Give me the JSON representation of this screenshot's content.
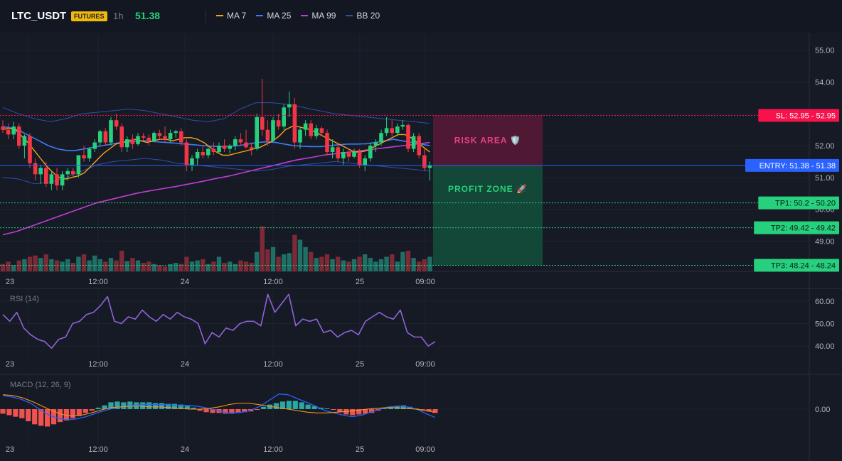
{
  "header": {
    "symbol": "LTC_USDT",
    "badge": "FUTURES",
    "timeframe": "1h",
    "price": "51.38",
    "legend": [
      {
        "label": "MA 7",
        "color": "#f7a21b"
      },
      {
        "label": "MA 25",
        "color": "#3d7bf7"
      },
      {
        "label": "MA 99",
        "color": "#c23cd6"
      },
      {
        "label": "BB 20",
        "color": "#2f4fa8"
      }
    ]
  },
  "colors": {
    "up": "#26d07c",
    "down": "#f23645",
    "vol_up": "#1f6f67",
    "vol_down": "#7d2a36",
    "entry": "#2962ff",
    "sl": "#f7124b",
    "tp": "#26d07c",
    "rsi": "#8e63d6",
    "macd": "#2962ff",
    "signal": "#f7931a",
    "hist_pos": "#2aa8a4",
    "hist_neg": "#ef5350"
  },
  "chart_data": [
    {
      "type": "candlestick",
      "panel": "price",
      "yticks": [
        49.0,
        50.0,
        51.0,
        52.0,
        53.0,
        54.0,
        55.0
      ],
      "ylim": [
        48.05,
        55.55
      ],
      "xticks": [
        "23",
        "12:00",
        "24",
        "12:00",
        "25",
        "09:00"
      ],
      "levels": [
        {
          "name": "SL",
          "value": 52.95,
          "label": "SL: 52.95",
          "price": "52.95"
        },
        {
          "name": "ENTRY",
          "value": 51.38,
          "label": "ENTRY: 51.38",
          "price": "51.38"
        },
        {
          "name": "TP1",
          "value": 50.2,
          "label": "TP1: 50.2",
          "price": "50.20"
        },
        {
          "name": "TP2",
          "value": 49.42,
          "label": "TP2: 49.42",
          "price": "49.42"
        },
        {
          "name": "TP3",
          "value": 48.24,
          "label": "TP3: 48.24",
          "price": "48.24"
        }
      ],
      "zones": {
        "risk_label": "RISK AREA 🛡️",
        "profit_label": "PROFIT ZONE 🚀"
      },
      "candles": [
        [
          52.6,
          52.8,
          52.4,
          52.5
        ],
        [
          52.5,
          52.7,
          52.2,
          52.35
        ],
        [
          52.35,
          52.75,
          52.2,
          52.6
        ],
        [
          52.6,
          52.7,
          51.9,
          52.0
        ],
        [
          52.0,
          52.35,
          51.6,
          52.3
        ],
        [
          52.3,
          52.4,
          51.3,
          51.45
        ],
        [
          51.45,
          51.6,
          50.9,
          51.1
        ],
        [
          51.1,
          51.4,
          50.8,
          51.3
        ],
        [
          51.3,
          51.5,
          50.7,
          50.8
        ],
        [
          50.8,
          51.2,
          50.6,
          51.1
        ],
        [
          51.1,
          51.3,
          50.6,
          50.75
        ],
        [
          50.75,
          51.2,
          50.6,
          51.1
        ],
        [
          51.1,
          51.3,
          50.9,
          51.2
        ],
        [
          51.2,
          51.3,
          51.0,
          51.1
        ],
        [
          51.1,
          51.7,
          51.0,
          51.7
        ],
        [
          51.7,
          52.0,
          51.5,
          51.6
        ],
        [
          51.6,
          51.95,
          51.5,
          51.9
        ],
        [
          51.9,
          52.2,
          51.8,
          52.1
        ],
        [
          52.1,
          52.5,
          52.0,
          52.45
        ],
        [
          52.45,
          52.55,
          52.0,
          52.1
        ],
        [
          52.1,
          52.9,
          52.0,
          52.8
        ],
        [
          52.8,
          53.0,
          52.5,
          52.6
        ],
        [
          52.6,
          52.7,
          51.8,
          51.95
        ],
        [
          51.95,
          52.3,
          51.8,
          52.2
        ],
        [
          52.2,
          52.35,
          51.9,
          52.05
        ],
        [
          52.05,
          52.4,
          52.0,
          52.3
        ],
        [
          52.3,
          52.4,
          52.15,
          52.25
        ],
        [
          52.25,
          52.35,
          52.0,
          52.15
        ],
        [
          52.15,
          52.45,
          52.1,
          52.4
        ],
        [
          52.4,
          52.5,
          52.2,
          52.3
        ],
        [
          52.3,
          52.6,
          52.1,
          52.2
        ],
        [
          52.2,
          52.5,
          52.1,
          52.4
        ],
        [
          52.4,
          52.5,
          52.25,
          52.45
        ],
        [
          52.45,
          52.55,
          52.0,
          52.1
        ],
        [
          52.1,
          52.2,
          51.2,
          51.4
        ],
        [
          51.4,
          51.7,
          51.2,
          51.6
        ],
        [
          51.6,
          51.9,
          51.4,
          51.8
        ],
        [
          51.8,
          52.0,
          51.6,
          51.7
        ],
        [
          51.7,
          51.95,
          51.6,
          51.9
        ],
        [
          51.9,
          52.1,
          51.7,
          51.8
        ],
        [
          51.8,
          52.1,
          51.75,
          52.0
        ],
        [
          52.0,
          52.2,
          51.8,
          51.9
        ],
        [
          51.9,
          52.05,
          51.75,
          52.0
        ],
        [
          52.0,
          52.3,
          51.85,
          52.2
        ],
        [
          52.2,
          52.4,
          52.0,
          52.1
        ],
        [
          52.1,
          52.5,
          51.9,
          51.95
        ],
        [
          51.95,
          52.1,
          51.7,
          51.9
        ],
        [
          51.9,
          53.0,
          51.85,
          52.9
        ],
        [
          52.9,
          54.1,
          52.3,
          52.5
        ],
        [
          52.5,
          52.8,
          52.0,
          52.15
        ],
        [
          52.15,
          52.9,
          52.1,
          52.8
        ],
        [
          52.8,
          53.0,
          52.5,
          52.6
        ],
        [
          52.6,
          53.3,
          52.5,
          53.2
        ],
        [
          53.2,
          53.7,
          52.9,
          53.3
        ],
        [
          53.3,
          53.5,
          51.9,
          52.1
        ],
        [
          52.1,
          52.6,
          51.9,
          52.5
        ],
        [
          52.5,
          52.8,
          52.3,
          52.7
        ],
        [
          52.7,
          52.8,
          52.2,
          52.3
        ],
        [
          52.3,
          52.65,
          52.2,
          52.55
        ],
        [
          52.55,
          52.6,
          52.3,
          52.4
        ],
        [
          52.4,
          52.5,
          51.7,
          51.8
        ],
        [
          51.8,
          52.2,
          51.6,
          51.95
        ],
        [
          51.95,
          52.1,
          51.5,
          51.6
        ],
        [
          51.6,
          51.9,
          51.4,
          51.8
        ],
        [
          51.8,
          51.9,
          51.5,
          51.65
        ],
        [
          51.65,
          51.9,
          51.6,
          51.8
        ],
        [
          51.8,
          51.9,
          51.3,
          51.4
        ],
        [
          51.4,
          51.7,
          51.2,
          51.6
        ],
        [
          51.6,
          52.1,
          51.5,
          52.0
        ],
        [
          52.0,
          52.2,
          51.8,
          52.1
        ],
        [
          52.1,
          52.5,
          52.0,
          52.4
        ],
        [
          52.4,
          52.9,
          52.3,
          52.55
        ],
        [
          52.55,
          52.8,
          52.3,
          52.4
        ],
        [
          52.4,
          52.7,
          52.3,
          52.6
        ],
        [
          52.6,
          52.8,
          52.5,
          52.65
        ],
        [
          52.65,
          52.7,
          51.8,
          51.9
        ],
        [
          51.9,
          52.4,
          51.8,
          52.3
        ],
        [
          52.3,
          52.4,
          51.6,
          51.7
        ],
        [
          51.7,
          51.9,
          51.2,
          51.3
        ],
        [
          51.3,
          51.5,
          50.9,
          51.38
        ]
      ],
      "volume": [
        30,
        40,
        25,
        45,
        50,
        60,
        65,
        55,
        70,
        50,
        45,
        40,
        50,
        35,
        60,
        70,
        45,
        65,
        50,
        40,
        55,
        45,
        85,
        42,
        55,
        45,
        35,
        40,
        30,
        25,
        20,
        30,
        35,
        30,
        60,
        40,
        45,
        50,
        30,
        40,
        60,
        35,
        40,
        30,
        45,
        40,
        35,
        80,
        185,
        90,
        100,
        60,
        70,
        75,
        150,
        130,
        100,
        80,
        55,
        60,
        70,
        50,
        60,
        45,
        40,
        50,
        60,
        70,
        55,
        40,
        50,
        60,
        70,
        40,
        80,
        85,
        55,
        40,
        50,
        60
      ],
      "ma7": [
        52.5,
        52.55,
        52.5,
        52.3,
        52.1,
        51.85,
        51.6,
        51.35,
        51.15,
        51.0,
        50.95,
        51.0,
        51.05,
        51.15,
        51.35,
        51.55,
        51.75,
        51.9,
        52.05,
        52.1,
        52.15,
        52.2,
        52.15,
        52.1,
        52.15,
        52.2,
        52.2,
        52.15,
        52.2,
        52.25,
        52.25,
        52.2,
        52.1,
        51.95,
        51.8,
        51.7,
        51.7,
        51.75,
        51.8,
        51.85,
        51.9,
        51.95,
        52.05,
        52.15,
        52.3,
        52.5,
        52.6,
        52.6,
        52.55,
        52.5,
        52.4,
        52.3,
        52.2,
        52.1,
        52.0,
        51.9,
        51.8,
        51.8,
        51.85,
        51.95,
        52.05,
        52.15,
        52.25,
        52.35,
        52.35,
        52.25,
        52.1,
        51.95,
        51.8
      ],
      "ma25": [
        52.6,
        52.55,
        52.45,
        52.3,
        52.15,
        52.0,
        51.9,
        51.85,
        51.85,
        51.9,
        51.95,
        52.0,
        52.05,
        52.1,
        52.12,
        52.15,
        52.15,
        52.12,
        52.1,
        52.08,
        52.05,
        52.03,
        52.0,
        51.98,
        51.97,
        51.98,
        52.0,
        52.05,
        52.1,
        52.12,
        52.1,
        52.05,
        52.0,
        51.98,
        51.97,
        51.97,
        52.0,
        52.03,
        52.05,
        52.05,
        52.06,
        52.1,
        52.15,
        52.2,
        52.15,
        52.1,
        52.05,
        52.0
      ],
      "ma99": [
        49.2,
        49.3,
        49.45,
        49.6,
        49.75,
        49.9,
        50.05,
        50.2,
        50.3,
        50.4,
        50.5,
        50.58,
        50.65,
        50.72,
        50.8,
        50.88,
        50.97,
        51.05,
        51.15,
        51.25,
        51.35,
        51.45,
        51.55,
        51.62,
        51.7,
        51.75,
        51.8,
        51.85,
        51.9,
        51.95,
        52.0,
        52.05,
        52.1
      ],
      "bb_upper": [
        53.2,
        53.0,
        52.85,
        52.75,
        52.85,
        53.0,
        53.05,
        53.1,
        53.15,
        53.1,
        53.0,
        52.9,
        52.8,
        52.75,
        52.85,
        53.15,
        53.35,
        53.35,
        53.3,
        53.2,
        53.1,
        53.0,
        52.95,
        52.9,
        52.85,
        52.8,
        52.75,
        52.7
      ],
      "bb_lower": [
        51.0,
        50.95,
        50.8,
        50.85,
        51.0,
        51.2,
        51.4,
        51.5,
        51.55,
        51.6,
        51.55,
        51.45,
        51.4,
        51.35,
        51.3,
        51.25,
        51.2,
        51.25,
        51.35,
        51.4,
        51.45,
        51.5,
        51.45,
        51.4,
        51.35,
        51.3,
        51.25,
        51.2
      ]
    },
    {
      "type": "line",
      "panel": "rsi",
      "title": "RSI (14)",
      "yticks": [
        40.0,
        50.0,
        60.0
      ],
      "ylim": [
        35,
        65
      ],
      "xticks": [
        "23",
        "12:00",
        "24",
        "12:00",
        "25",
        "09:00"
      ],
      "values": [
        54,
        51,
        55,
        48,
        45,
        43,
        42,
        39,
        43,
        44,
        50,
        51,
        54,
        55,
        58,
        62,
        51,
        50,
        53,
        52,
        56,
        53,
        51,
        54,
        52,
        55,
        53,
        52,
        50,
        41,
        46,
        44,
        48,
        47,
        50,
        51,
        51,
        49,
        63,
        55,
        59,
        63,
        49,
        52,
        51,
        52,
        46,
        47,
        44,
        46,
        47,
        45,
        51,
        53,
        55,
        53,
        52,
        56,
        46,
        44,
        44,
        40,
        42
      ]
    },
    {
      "type": "bar",
      "panel": "macd",
      "title": "MACD (12, 26, 9)",
      "yticks": [
        0.0
      ],
      "ylim": [
        -0.45,
        0.45
      ],
      "xticks": [
        "23",
        "12:00",
        "24",
        "12:00",
        "25",
        "09:00"
      ],
      "histogram": [
        -0.06,
        -0.08,
        -0.1,
        -0.12,
        -0.16,
        -0.2,
        -0.22,
        -0.23,
        -0.2,
        -0.17,
        -0.15,
        -0.12,
        -0.09,
        -0.05,
        -0.02,
        0.02,
        0.05,
        0.09,
        0.1,
        0.09,
        0.1,
        0.09,
        0.09,
        0.09,
        0.08,
        0.08,
        0.07,
        0.07,
        0.06,
        0.04,
        0.02,
        -0.02,
        -0.04,
        -0.05,
        -0.05,
        -0.06,
        -0.06,
        -0.05,
        -0.04,
        -0.03,
        -0.01,
        0.03,
        0.06,
        0.08,
        0.1,
        0.11,
        0.11,
        0.09,
        0.06,
        0.04,
        0.02,
        0.01,
        -0.01,
        -0.04,
        -0.07,
        -0.08,
        -0.07,
        -0.06,
        -0.05,
        -0.02,
        0.01,
        0.03,
        0.04,
        0.05,
        0.03,
        0.01,
        -0.01,
        -0.03,
        -0.05
      ],
      "macd": [
        0.18,
        0.16,
        0.13,
        0.08,
        0.0,
        -0.08,
        -0.12,
        -0.14,
        -0.13,
        -0.1,
        -0.06,
        -0.02,
        0.01,
        0.03,
        0.05,
        0.06,
        0.06,
        0.06,
        0.06,
        0.05,
        0.05,
        0.04,
        0.02,
        -0.01,
        -0.04,
        -0.05,
        -0.04,
        -0.01,
        0.04,
        0.12,
        0.2,
        0.19,
        0.14,
        0.09,
        0.04,
        -0.02,
        -0.05,
        -0.08,
        -0.1,
        -0.08,
        -0.04,
        0.0,
        0.03,
        0.04,
        0.03,
        0.0,
        -0.06,
        -0.11
      ],
      "signal": [
        0.19,
        0.18,
        0.15,
        0.1,
        0.04,
        -0.02,
        -0.07,
        -0.09,
        -0.08,
        -0.05,
        -0.01,
        0.02,
        0.03,
        0.04,
        0.04,
        0.03,
        0.03,
        0.02,
        0.01,
        0.0,
        0.0,
        0.01,
        0.03,
        0.06,
        0.08,
        0.08,
        0.06,
        0.04,
        0.02,
        0.0,
        -0.02,
        -0.04,
        -0.05,
        -0.05,
        -0.04,
        -0.03,
        -0.02,
        0.0,
        0.01,
        0.02,
        0.02,
        0.01,
        0.0,
        -0.02,
        -0.04
      ]
    }
  ]
}
